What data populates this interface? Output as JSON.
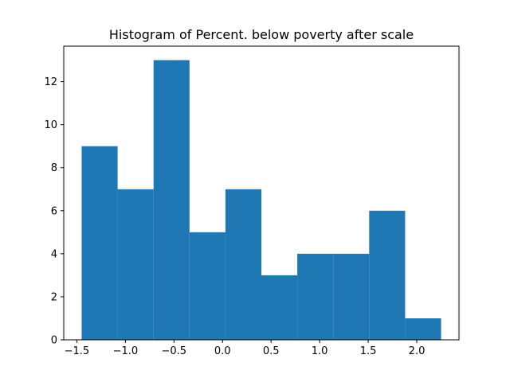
{
  "chart_data": {
    "type": "bar",
    "title": "Histogram of Percent. below poverty after scale",
    "xlabel": "",
    "ylabel": "",
    "bin_edges": [
      -1.45,
      -1.08,
      -0.71,
      -0.34,
      0.03,
      0.4,
      0.77,
      1.14,
      1.51,
      1.88,
      2.25
    ],
    "values": [
      9,
      7,
      13,
      5,
      7,
      3,
      4,
      4,
      6,
      1
    ],
    "xlim": [
      -1.6346,
      2.4346
    ],
    "ylim": [
      0,
      13.65
    ],
    "xticks": [
      -1.5,
      -1.0,
      -0.5,
      0.0,
      0.5,
      1.0,
      1.5,
      2.0
    ],
    "xtick_labels": [
      "−1.5",
      "−1.0",
      "−0.5",
      "0.0",
      "0.5",
      "1.0",
      "1.5",
      "2.0"
    ],
    "yticks": [
      0,
      2,
      4,
      6,
      8,
      10,
      12
    ],
    "ytick_labels": [
      "0",
      "2",
      "4",
      "6",
      "8",
      "10",
      "12"
    ],
    "bar_color": "#1f77b4",
    "grid": false,
    "legend": "none"
  }
}
